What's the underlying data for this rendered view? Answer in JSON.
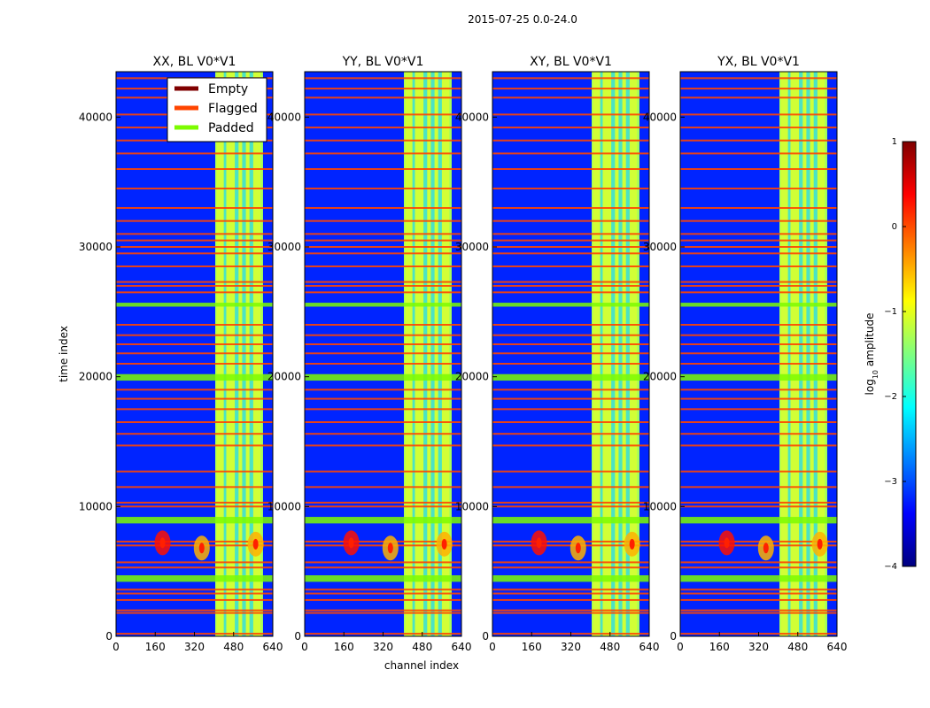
{
  "figure_title": "2015-07-25 0.0-24.0",
  "colors": {
    "empty": "#7f0000",
    "flagged": "#ff4500",
    "padded": "#7cfc00",
    "background": "#0a2ee6",
    "edge": "#000000"
  },
  "chart_data": {
    "type": "heatmap",
    "title": "2015-07-25 0.0-24.0",
    "xlabel": "channel index",
    "ylabel": "time index",
    "xlim": [
      0,
      640
    ],
    "ylim": [
      0,
      43500
    ],
    "xticks": [
      0,
      160,
      320,
      480,
      640
    ],
    "yticks": [
      0,
      10000,
      20000,
      30000,
      40000
    ],
    "panels": [
      {
        "title": "XX, BL V0*V1",
        "pol": "XX"
      },
      {
        "title": "YY, BL V0*V1",
        "pol": "YY"
      },
      {
        "title": "XY, BL V0*V1",
        "pol": "XY"
      },
      {
        "title": "YX, BL V0*V1",
        "pol": "YX"
      }
    ],
    "legend": {
      "location": "top-right of first panel",
      "entries": [
        {
          "label": "Empty",
          "color": "#7f0000"
        },
        {
          "label": "Flagged",
          "color": "#ff4500"
        },
        {
          "label": "Padded",
          "color": "#7cfc00"
        }
      ]
    },
    "colorbar": {
      "label": "log10 amplitude",
      "label_base": "log",
      "label_sub": "10",
      "label_rest": " amplitude",
      "range": [
        -4,
        1
      ],
      "ticks": [
        1,
        0,
        -1,
        -2,
        -3,
        -4
      ],
      "tick_labels": [
        "1",
        "0",
        "−1",
        "−2",
        "−3",
        "−4"
      ],
      "colormap": [
        "#00007f",
        "#0000ff",
        "#007fff",
        "#00ffff",
        "#7fff7f",
        "#ffff00",
        "#ff7f00",
        "#ff0000",
        "#7f0000"
      ]
    },
    "high_amplitude_band": {
      "channel_range": [
        405,
        600
      ],
      "log10_amplitude": -1.3
    },
    "bright_columns": [
      [
        410,
        440
      ],
      [
        450,
        485
      ],
      [
        500,
        515
      ],
      [
        530,
        545
      ],
      [
        560,
        590
      ]
    ],
    "padded_time_bands": [
      [
        4200,
        4700
      ],
      [
        8700,
        9200
      ],
      [
        19700,
        20200
      ],
      [
        25400,
        25700
      ]
    ],
    "flagged_time_lines": [
      200,
      1800,
      2000,
      2800,
      3300,
      3600,
      5300,
      5700,
      7000,
      7300,
      10000,
      10300,
      11500,
      12700,
      14700,
      15600,
      16500,
      17500,
      18300,
      19000,
      21000,
      21800,
      22500,
      23200,
      24000,
      26500,
      27000,
      27300,
      28500,
      29500,
      30000,
      30500,
      31000,
      32000,
      33000,
      34500,
      36000,
      37200,
      38200,
      39200,
      40200,
      41500,
      42200,
      43000
    ],
    "rfi_bursts": [
      {
        "channel": 190,
        "time": 7200,
        "log10_amplitude": 0.3
      },
      {
        "channel": 350,
        "time": 6800,
        "log10_amplitude": -0.5
      },
      {
        "channel": 570,
        "time": 7100,
        "log10_amplitude": -0.5
      }
    ],
    "background_log10_amplitude": -3.2
  }
}
